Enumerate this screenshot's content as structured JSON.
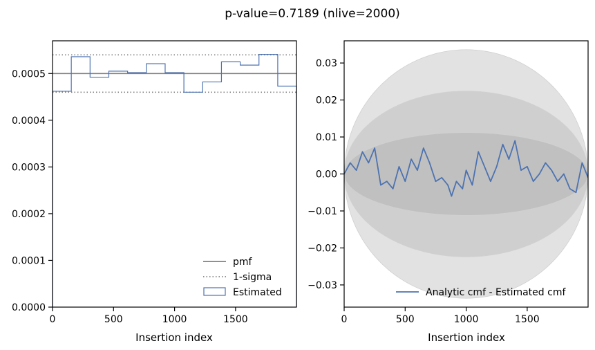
{
  "figure": {
    "suptitle": "p-value=0.7189 (nlive=2000)"
  },
  "chart_data": [
    {
      "type": "step",
      "xlabel": "Insertion index",
      "ylabel": "",
      "xlim": [
        0,
        1999
      ],
      "ylim": [
        0,
        0.00057
      ],
      "xticks": [
        0,
        500,
        1000,
        1500
      ],
      "xtick_labels": [
        "0",
        "500",
        "1000",
        "1500"
      ],
      "yticks": [
        0,
        0.0001,
        0.0002,
        0.0003,
        0.0004,
        0.0005
      ],
      "ytick_labels": [
        "0.0000",
        "0.0001",
        "0.0002",
        "0.0003",
        "0.0004",
        "0.0005"
      ],
      "legend_position": "lower-right",
      "pmf": 0.0005,
      "sigma_upper": 0.00054,
      "sigma_lower": 0.00046,
      "bin_edges": [
        0,
        153.8,
        307.6,
        461.4,
        615.2,
        769,
        922.8,
        1076.6,
        1230.4,
        1384.2,
        1538,
        1691.8,
        1845.6,
        1999
      ],
      "estimated": [
        0.000462,
        0.000536,
        0.000492,
        0.000505,
        0.000502,
        0.000521,
        0.000502,
        0.00046,
        0.000482,
        0.000525,
        0.000518,
        0.000541,
        0.000473
      ],
      "series": [
        {
          "name": "pmf",
          "color": "#808080",
          "style": "solid"
        },
        {
          "name": "1-sigma",
          "color": "#808080",
          "style": "dotted"
        },
        {
          "name": "Estimated",
          "color": "#4c72b0",
          "style": "step-hollow"
        }
      ]
    },
    {
      "type": "line",
      "xlabel": "Insertion index",
      "ylabel": "",
      "xlim": [
        0,
        1999
      ],
      "ylim": [
        -0.036,
        0.036
      ],
      "xticks": [
        0,
        500,
        1000,
        1500
      ],
      "xtick_labels": [
        "0",
        "500",
        "1000",
        "1500"
      ],
      "yticks": [
        -0.03,
        -0.02,
        -0.01,
        0.0,
        0.01,
        0.02,
        0.03
      ],
      "ytick_labels": [
        "−0.03",
        "−0.02",
        "−0.01",
        "0.00",
        "0.01",
        "0.02",
        "0.03"
      ],
      "legend_position": "lower-right",
      "bands": {
        "sigmas": [
          1,
          2,
          3
        ],
        "peak_half_width": [
          0.0112,
          0.0224,
          0.0336
        ],
        "colors": [
          "#c0c0c0",
          "#cfcfcf",
          "#e2e2e2"
        ]
      },
      "series": [
        {
          "name": "Analytic cmf - Estimated cmf",
          "color": "#4c72b0",
          "x": [
            0,
            50,
            100,
            150,
            200,
            250,
            300,
            350,
            400,
            450,
            500,
            550,
            600,
            650,
            700,
            750,
            800,
            850,
            880,
            920,
            970,
            1000,
            1050,
            1100,
            1150,
            1200,
            1250,
            1300,
            1350,
            1400,
            1450,
            1500,
            1550,
            1600,
            1650,
            1700,
            1750,
            1800,
            1850,
            1900,
            1950,
            1999
          ],
          "y": [
            0.0,
            0.003,
            0.001,
            0.006,
            0.003,
            0.007,
            -0.003,
            -0.002,
            -0.004,
            0.002,
            -0.002,
            0.004,
            0.001,
            0.007,
            0.003,
            -0.002,
            -0.001,
            -0.003,
            -0.006,
            -0.002,
            -0.004,
            0.001,
            -0.003,
            0.006,
            0.002,
            -0.002,
            0.002,
            0.008,
            0.004,
            0.009,
            0.001,
            0.002,
            -0.002,
            0.0,
            0.003,
            0.001,
            -0.002,
            0.0,
            -0.004,
            -0.005,
            0.003,
            -0.001
          ]
        }
      ]
    }
  ]
}
